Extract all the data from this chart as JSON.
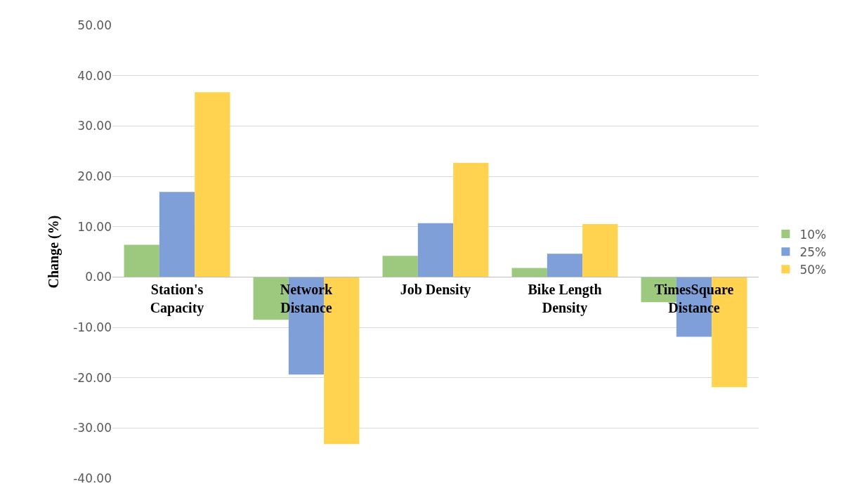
{
  "chart_data": {
    "type": "bar",
    "ylabel": "Change (%)",
    "categories": [
      "Station's Capacity",
      "Network Distance",
      "Job Density",
      "Bike Length Density",
      "TimesSquare Distance"
    ],
    "series": [
      {
        "name": "10%",
        "color": "#9dc97f",
        "values": [
          6.4,
          -8.5,
          4.2,
          1.8,
          -5.0
        ]
      },
      {
        "name": "25%",
        "color": "#7f9fd8",
        "values": [
          16.9,
          -19.4,
          10.7,
          4.6,
          -11.9
        ]
      },
      {
        "name": "50%",
        "color": "#ffd34f",
        "values": [
          36.7,
          -33.2,
          22.7,
          10.5,
          -21.9
        ]
      }
    ],
    "ylim": [
      -40,
      50
    ],
    "yticks": [
      {
        "value": -40,
        "label": "-40.00"
      },
      {
        "value": -30,
        "label": "-30.00"
      },
      {
        "value": -20,
        "label": "-20.00"
      },
      {
        "value": -10,
        "label": "-10.00"
      },
      {
        "value": 0,
        "label": "0.00"
      },
      {
        "value": 10,
        "label": "10.00"
      },
      {
        "value": 20,
        "label": "20.00"
      },
      {
        "value": 30,
        "label": "30.00"
      },
      {
        "value": 40,
        "label": "40.00"
      },
      {
        "value": 50,
        "label": "50.00"
      }
    ],
    "grid": "y",
    "legend": "right"
  }
}
